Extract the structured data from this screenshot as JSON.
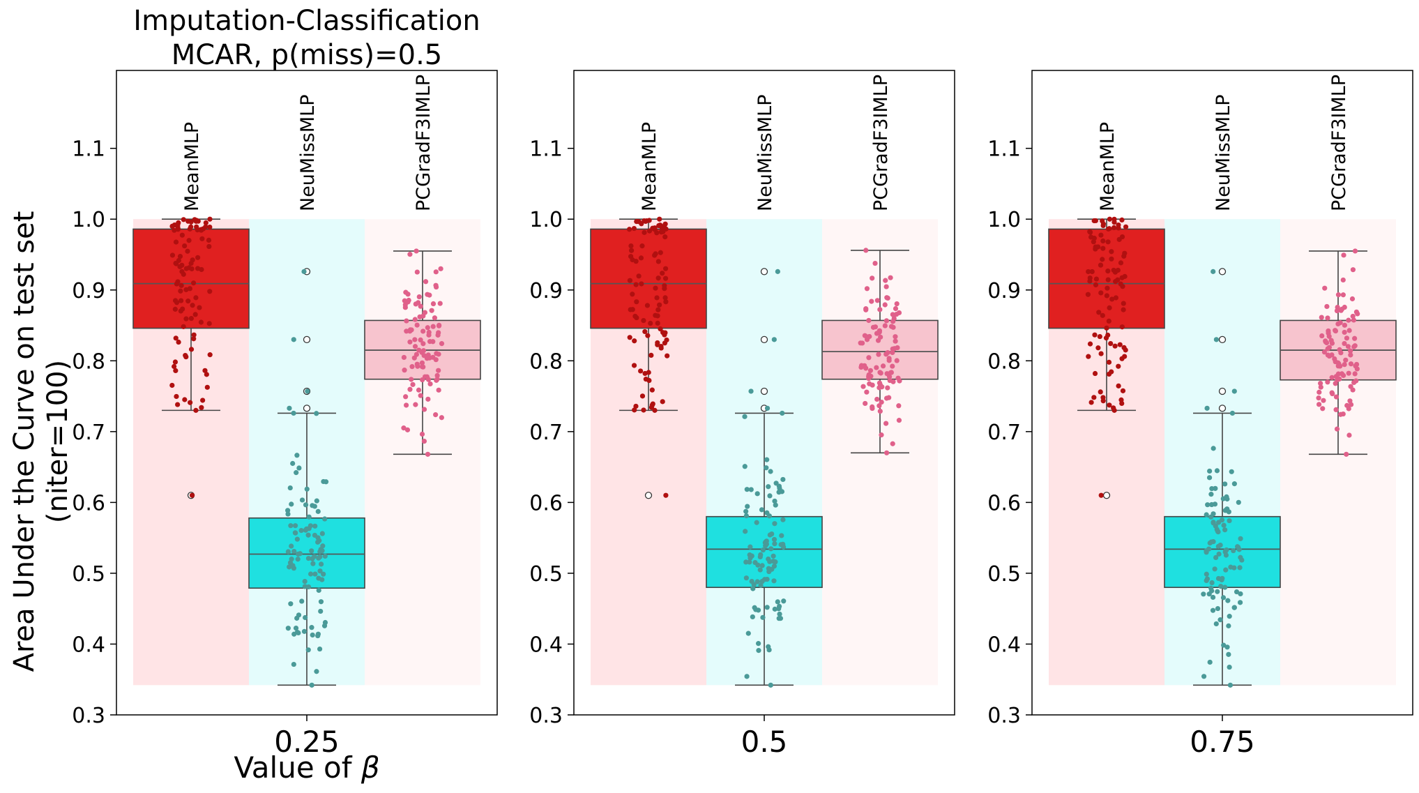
{
  "figure": {
    "title_line1": "Imputation-Classification",
    "title_line2": "MCAR, p(miss)=0.5",
    "ylabel_line1": "Area Under the Curve on test set",
    "ylabel_line2": "(niter=100)",
    "xlabel_prefix": "Value of ",
    "xlabel_symbol": "β"
  },
  "chart_data": {
    "type": "box",
    "title": "Imputation-Classification MCAR, p(miss)=0.5",
    "ylabel": "Area Under the Curve on test set (niter=100)",
    "xlabel": "Value of β",
    "ylim": [
      0.3,
      1.21
    ],
    "yticks": [
      0.3,
      0.4,
      0.5,
      0.6,
      0.7,
      0.8,
      0.9,
      1.0,
      1.1
    ],
    "ytick_labels": [
      "0.3",
      "0.4",
      "0.5",
      "0.6",
      "0.7",
      "0.8",
      "0.9",
      "1.0",
      "1.1"
    ],
    "colors": {
      "MeanMLP": {
        "box": "#e02020",
        "bg": "#ffe4e6",
        "point": "#b01010"
      },
      "NeuMissMLP": {
        "box": "#1fe0e0",
        "bg": "#e4fcfc",
        "point": "#4a9a98"
      },
      "PCGradF3IMLP": {
        "box": "#f7c4ce",
        "bg": "#fff6f6",
        "point": "#e0608a"
      }
    },
    "panels": [
      {
        "beta": "0.25",
        "bg_band": [
          0.342,
          1.0
        ],
        "series": [
          {
            "name": "MeanMLP",
            "q1": 0.846,
            "median": 0.909,
            "q3": 0.986,
            "whisker_low": 0.73,
            "whisker_high": 1.0,
            "outliers": [
              0.61
            ]
          },
          {
            "name": "NeuMissMLP",
            "q1": 0.479,
            "median": 0.527,
            "q3": 0.578,
            "whisker_low": 0.342,
            "whisker_high": 0.726,
            "outliers": [
              0.926,
              0.83,
              0.757,
              0.733
            ]
          },
          {
            "name": "PCGradF3IMLP",
            "q1": 0.774,
            "median": 0.815,
            "q3": 0.857,
            "whisker_low": 0.668,
            "whisker_high": 0.955,
            "outliers": []
          }
        ]
      },
      {
        "beta": "0.5",
        "bg_band": [
          0.342,
          1.0
        ],
        "series": [
          {
            "name": "MeanMLP",
            "q1": 0.846,
            "median": 0.909,
            "q3": 0.986,
            "whisker_low": 0.73,
            "whisker_high": 1.0,
            "outliers": [
              0.61
            ]
          },
          {
            "name": "NeuMissMLP",
            "q1": 0.48,
            "median": 0.534,
            "q3": 0.58,
            "whisker_low": 0.342,
            "whisker_high": 0.726,
            "outliers": [
              0.926,
              0.83,
              0.757,
              0.733
            ]
          },
          {
            "name": "PCGradF3IMLP",
            "q1": 0.774,
            "median": 0.813,
            "q3": 0.857,
            "whisker_low": 0.67,
            "whisker_high": 0.956,
            "outliers": []
          }
        ]
      },
      {
        "beta": "0.75",
        "bg_band": [
          0.342,
          1.0
        ],
        "series": [
          {
            "name": "MeanMLP",
            "q1": 0.846,
            "median": 0.909,
            "q3": 0.986,
            "whisker_low": 0.73,
            "whisker_high": 1.0,
            "outliers": [
              0.61
            ]
          },
          {
            "name": "NeuMissMLP",
            "q1": 0.48,
            "median": 0.534,
            "q3": 0.58,
            "whisker_low": 0.342,
            "whisker_high": 0.726,
            "outliers": [
              0.926,
              0.83,
              0.757,
              0.733
            ]
          },
          {
            "name": "PCGradF3IMLP",
            "q1": 0.773,
            "median": 0.815,
            "q3": 0.857,
            "whisker_low": 0.668,
            "whisker_high": 0.955,
            "outliers": []
          }
        ]
      }
    ]
  }
}
